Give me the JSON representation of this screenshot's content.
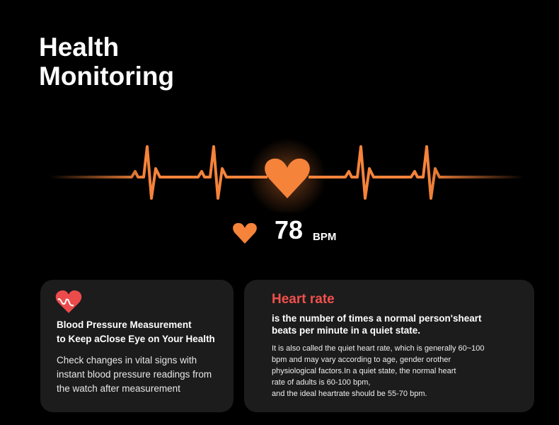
{
  "title": {
    "line1": "Health",
    "line2": "Monitoring"
  },
  "reading": {
    "value": "78",
    "unit": "BPM"
  },
  "colors": {
    "accent": "#f5833a",
    "heading_red": "#f0504c",
    "card_bg": "#1c1c1c"
  },
  "cards": [
    {
      "icon": "heart-pulse-icon",
      "heading1": "Blood Pressure Measurement",
      "heading2": "to Keep aClose Eye on Your Health",
      "body": "Check changes in vital signs with instant blood pressure readings from the watch after measurement"
    },
    {
      "title": "Heart rate",
      "subtitle1": "is the number of times a normal person'sheart",
      "subtitle2": "beats per minute in a quiet state.",
      "lines": [
        "It is also called the quiet heart rate, which is generally 60~100",
        "bpm and may vary according to age, gender orother",
        "physiological factors.In a quiet state, the normal heart",
        "rate of adults is 60-100 bpm,",
        "and the ideal heartrate should be 55-70 bpm."
      ]
    }
  ]
}
